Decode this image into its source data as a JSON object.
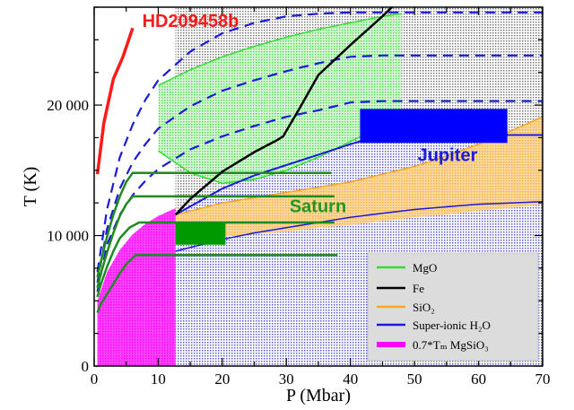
{
  "chart_data": {
    "type": "area",
    "xlabel": "P (Mbar)",
    "ylabel": "T (K)",
    "xlim": [
      0,
      70
    ],
    "ylim": [
      0,
      27500
    ],
    "xticks": [
      0,
      10,
      20,
      30,
      40,
      50,
      60,
      70
    ],
    "xtick_labels": [
      "0",
      "10",
      "20",
      "30",
      "40",
      "50",
      "60",
      "70"
    ],
    "yticks": [
      0,
      10000,
      20000
    ],
    "ytick_labels": [
      "0",
      "10 000",
      "20 000"
    ],
    "grid": false,
    "legend_position": "bottom-right",
    "legend": [
      {
        "label": "MgO",
        "color": "#33dd33"
      },
      {
        "label": "Fe",
        "color": "#000000"
      },
      {
        "label": "SiO₂",
        "color": "#f5a623"
      },
      {
        "label": "Super-ionic H₂O",
        "color": "#1a1adb"
      },
      {
        "label": "0.7*Tₘ MgSiO₃",
        "color": "#ff00ff"
      }
    ],
    "annotations": [
      {
        "text": "HD209458b",
        "x": 7.5,
        "y": 26000,
        "color": "#ff1a1a"
      },
      {
        "text": "Jupiter",
        "x": 50.5,
        "y": 15700,
        "color": "#1a1adb"
      },
      {
        "text": "Saturn",
        "x": 30.5,
        "y": 11800,
        "color": "#1f9a1f"
      }
    ],
    "series": [
      {
        "name": "MgO",
        "x": [
          10,
          15,
          20,
          25,
          30,
          35,
          40,
          45,
          48
        ],
        "upper": [
          21500,
          22700,
          23700,
          24500,
          25200,
          25800,
          26300,
          26800,
          27000
        ],
        "lower": [
          16500,
          14800,
          14000,
          14300,
          15000,
          16000,
          17200,
          18400,
          19100
        ]
      },
      {
        "name": "Fe",
        "x": [
          12.7,
          15,
          20,
          25,
          28.5,
          29.5,
          32,
          35,
          40,
          45,
          46.5
        ],
        "y": [
          11600,
          12800,
          14900,
          16400,
          17300,
          17600,
          19700,
          22300,
          24600,
          26800,
          27500
        ]
      },
      {
        "name": "SiO2",
        "x": [
          12.7,
          20,
          25,
          30,
          35,
          40,
          45,
          50,
          55,
          60,
          65,
          70
        ],
        "upper": [
          11600,
          12500,
          12900,
          13300,
          13700,
          14100,
          14700,
          15300,
          16100,
          17000,
          18000,
          19100
        ],
        "lower": [
          9600,
          9900,
          10100,
          10300,
          10600,
          10800,
          11100,
          11400,
          11600,
          11900,
          12100,
          12400
        ]
      },
      {
        "name": "Super-ionic H2O",
        "x": [
          12.7,
          20,
          25,
          30,
          35,
          40,
          45,
          50,
          55,
          60,
          65,
          70
        ],
        "upper": [
          11600,
          13600,
          14600,
          15400,
          16200,
          17000,
          17700,
          17700,
          17700,
          17700,
          17700,
          17700
        ],
        "lower": [
          8800,
          9700,
          10200,
          10600,
          11000,
          11400,
          11700,
          12000,
          12200,
          12400,
          12500,
          12600
        ]
      },
      {
        "name": "0.7*Tm MgSiO3",
        "x": [
          0.5,
          2,
          4,
          6,
          8,
          10,
          12.7
        ],
        "upper": [
          5000,
          7200,
          8900,
          10100,
          10900,
          11500,
          12100
        ],
        "lower": [
          4500,
          5400,
          6400,
          7300,
          8000,
          8300,
          8500
        ]
      },
      {
        "name": "HD209458b",
        "x": [
          0.5,
          1.5,
          3,
          4.5,
          6
        ],
        "y": [
          14700,
          18600,
          22000,
          23700,
          25900
        ]
      },
      {
        "name": "Saturn profile",
        "x": [
          0.5,
          1,
          2,
          3,
          4,
          5,
          6.5,
          10,
          20,
          30,
          38
        ],
        "y": [
          4100,
          4700,
          5500,
          6300,
          7100,
          7800,
          8500,
          8500,
          8500,
          8500,
          8500
        ]
      },
      {
        "name": "green adiabat 11000",
        "x": [
          0.5,
          1,
          2,
          3,
          4,
          5.5,
          7,
          15,
          25,
          35,
          37.5
        ],
        "y": [
          5300,
          6200,
          7600,
          8800,
          9800,
          10600,
          11000,
          11000,
          11000,
          11000,
          11000
        ]
      },
      {
        "name": "green adiabat 13000",
        "x": [
          0.5,
          1,
          2,
          3,
          4,
          5,
          6,
          15,
          25,
          35,
          37.5
        ],
        "y": [
          6000,
          7000,
          8700,
          10200,
          11500,
          12400,
          13000,
          13000,
          13000,
          13000,
          13000
        ]
      },
      {
        "name": "green adiabat 14800",
        "x": [
          0.5,
          1,
          2,
          3,
          4,
          5,
          6,
          15,
          25,
          35,
          37
        ],
        "y": [
          6800,
          7900,
          9900,
          11600,
          13000,
          14100,
          14800,
          14800,
          14800,
          14800,
          14800
        ]
      },
      {
        "name": "blue dashed 1",
        "x": [
          0.5,
          2,
          4,
          6,
          8,
          10,
          15,
          20,
          25,
          30,
          35,
          40,
          45,
          50,
          70
        ],
        "y": [
          7200,
          12000,
          16000,
          18500,
          20400,
          21900,
          24100,
          25500,
          26300,
          26800,
          27000,
          27100,
          27100,
          27100,
          27100
        ]
      },
      {
        "name": "blue dashed 2",
        "x": [
          0.5,
          2,
          4,
          6,
          8,
          10,
          15,
          20,
          25,
          30,
          35,
          40,
          45,
          50,
          70
        ],
        "y": [
          6400,
          10500,
          13600,
          15600,
          17000,
          18200,
          19900,
          21100,
          21900,
          22600,
          23200,
          23700,
          23800,
          23800,
          23800
        ]
      },
      {
        "name": "blue dashed 3",
        "x": [
          0.5,
          2,
          4,
          6,
          8,
          10,
          15,
          20,
          25,
          30,
          35,
          40,
          45,
          50,
          70
        ],
        "y": [
          5700,
          9300,
          11600,
          13100,
          14200,
          15100,
          16600,
          17600,
          18400,
          19100,
          19600,
          20200,
          20300,
          20300,
          20300
        ]
      }
    ],
    "boxes": [
      {
        "name": "Jupiter",
        "x0": 41.5,
        "x1": 64.5,
        "y0": 17100,
        "y1": 19700,
        "color": "#0000ff"
      },
      {
        "name": "Saturn",
        "x0": 12.7,
        "x1": 20.5,
        "y0": 9300,
        "y1": 11000,
        "color": "#009900"
      }
    ]
  }
}
